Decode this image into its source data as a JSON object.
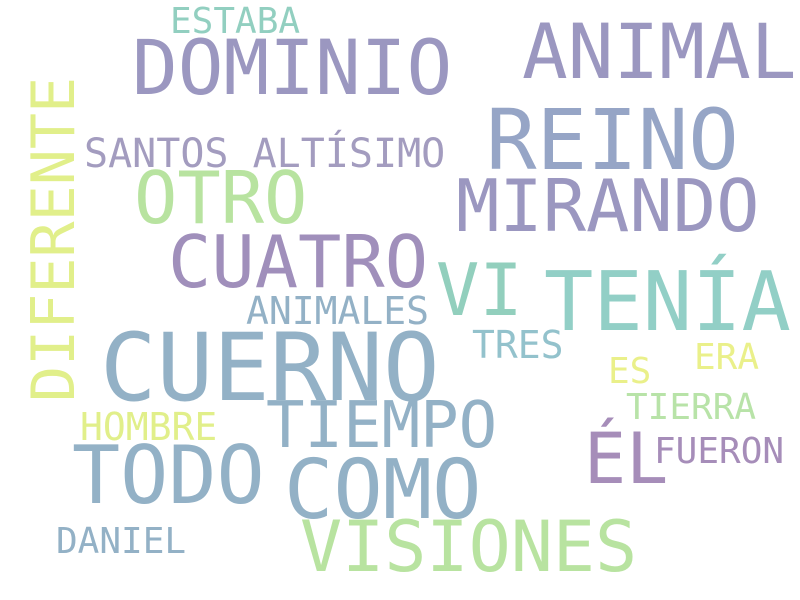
{
  "words": [
    {
      "text": "DOMINIO",
      "color": "#9b97c0"
    },
    {
      "text": "ANIMAL",
      "color": "#9b97c0"
    },
    {
      "text": "REINO",
      "color": "#96a5c6"
    },
    {
      "text": "MIRANDO",
      "color": "#9b97c0"
    },
    {
      "text": "OTRO",
      "color": "#b8e3a0"
    },
    {
      "text": "CUATRO",
      "color": "#a08fbb"
    },
    {
      "text": "VI",
      "color": "#92cfbd"
    },
    {
      "text": "TENÍA",
      "color": "#92cfc6"
    },
    {
      "text": "CUERNO",
      "color": "#93b1c6"
    },
    {
      "text": "TIEMPO",
      "color": "#93b1c6"
    },
    {
      "text": "TODO",
      "color": "#93b1c6"
    },
    {
      "text": "COMO",
      "color": "#93b1c6"
    },
    {
      "text": "VISIONES",
      "color": "#b8e3a0"
    },
    {
      "text": "ÉL",
      "color": "#a68db9"
    },
    {
      "text": "SANTOS ALTÍSIMO",
      "color": "#a39cbf"
    },
    {
      "text": "ANIMALES",
      "color": "#93b1c6"
    },
    {
      "text": "TRES",
      "color": "#93c2cc"
    },
    {
      "text": "ESTABA",
      "color": "#92cfc0"
    },
    {
      "text": "DIFERENTE",
      "color": "#e1ef8a"
    },
    {
      "text": "HOMBRE",
      "color": "#e1ef8a"
    },
    {
      "text": "DANIEL",
      "color": "#93b1c6"
    },
    {
      "text": "FUERON",
      "color": "#a68db9"
    },
    {
      "text": "TIERRA",
      "color": "#b8e3a8"
    },
    {
      "text": "ERA",
      "color": "#eaf08a"
    },
    {
      "text": "ES",
      "color": "#eaf08a"
    }
  ]
}
